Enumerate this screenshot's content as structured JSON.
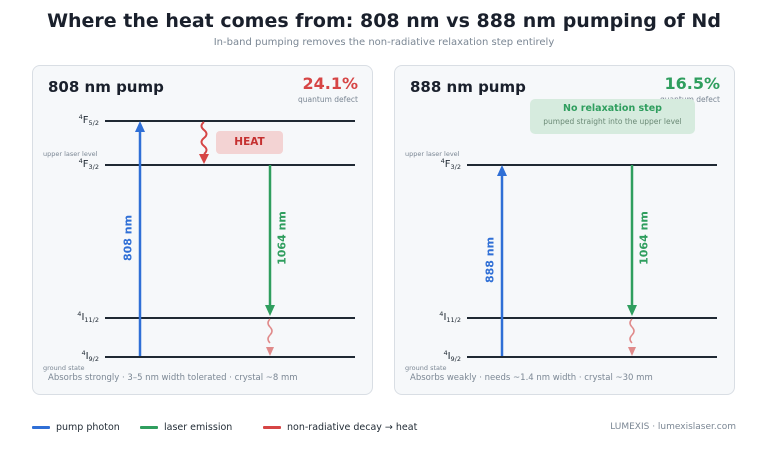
{
  "title": "Where the heat comes from: 808 nm vs 888 nm pumping of Nd",
  "subtitle": "In-band pumping removes the non-radiative relaxation step entirely",
  "colors": {
    "pump": "#2f6fd6",
    "laser": "#2f9e5e",
    "heat": "#d64545",
    "heat_faded": "#e08a8a"
  },
  "panels": {
    "left": {
      "title": "808 nm pump",
      "qd_value": "24.1%",
      "qd_label": "quantum defect",
      "qd_color": "#d64545",
      "levels": {
        "f52": {
          "sup": "4",
          "main": "F",
          "sub": "5/2"
        },
        "f32": {
          "sup": "4",
          "main": "F",
          "sub": "3/2"
        },
        "i112": {
          "sup": "4",
          "main": "I",
          "sub": "11/2"
        },
        "i92": {
          "sup": "4",
          "main": "I",
          "sub": "9/2"
        }
      },
      "upper_note": "upper laser level",
      "ground_note": "ground state",
      "heat_label": "HEAT",
      "pump_label": "808 nm",
      "laser_label": "1064 nm",
      "footnote": "Absorbs strongly · 3–5 nm width tolerated · crystal ~8 mm"
    },
    "right": {
      "title": "888 nm pump",
      "qd_value": "16.5%",
      "qd_label": "quantum defect",
      "qd_color": "#2f9e5e",
      "levels": {
        "f32": {
          "sup": "4",
          "main": "F",
          "sub": "3/2"
        },
        "i112": {
          "sup": "4",
          "main": "I",
          "sub": "11/2"
        },
        "i92": {
          "sup": "4",
          "main": "I",
          "sub": "9/2"
        }
      },
      "upper_note": "upper laser level",
      "ground_note": "ground state",
      "callout_title": "No relaxation step",
      "callout_sub": "pumped straight into the upper level",
      "pump_label": "888 nm",
      "laser_label": "1064 nm",
      "footnote": "Absorbs weakly · needs ~1.4 nm width · crystal ~30 mm"
    }
  },
  "legend": {
    "pump": "pump photon",
    "laser": "laser emission",
    "heat": "non-radiative decay → heat"
  },
  "brand": "LUMEXIS · lumexislaser.com"
}
